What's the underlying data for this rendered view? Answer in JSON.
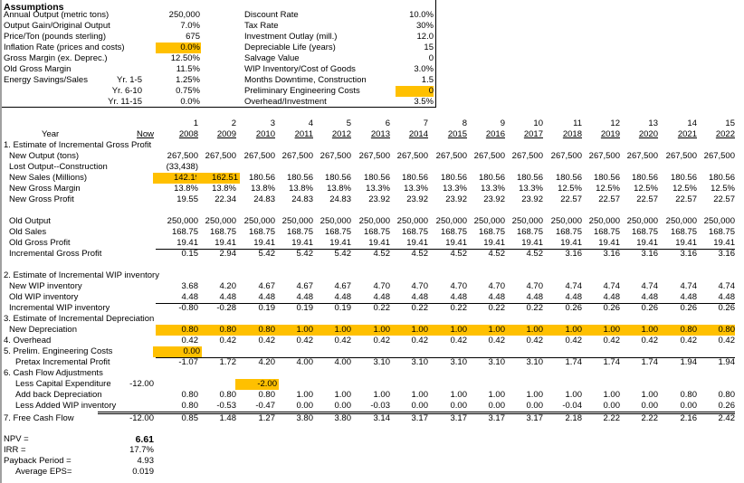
{
  "colors": {
    "highlight": "#FFC000"
  },
  "assumptions": {
    "title": "Assumptions",
    "left": [
      {
        "label": "Annual Output (metric tons)",
        "sub": "",
        "value": "250,000"
      },
      {
        "label": "Output Gain/Original Output",
        "sub": "",
        "value": "7.0%"
      },
      {
        "label": "Price/Ton (pounds sterling)",
        "sub": "",
        "value": "675"
      },
      {
        "label": "Inflation Rate (prices and costs)",
        "sub": "",
        "value": "0.0%",
        "highlight": true
      },
      {
        "label": "Gross Margin (ex. Deprec.)",
        "sub": "",
        "value": "12.50%"
      },
      {
        "label": "Old Gross Margin",
        "sub": "",
        "value": "11.5%"
      },
      {
        "label": "Energy Savings/Sales",
        "sub": "Yr. 1-5",
        "value": "1.25%"
      },
      {
        "label": "",
        "sub": "Yr. 6-10",
        "value": "0.75%"
      },
      {
        "label": "",
        "sub": "Yr. 11-15",
        "value": "0.0%"
      }
    ],
    "right": [
      {
        "label": "Discount Rate",
        "value": "10.0%"
      },
      {
        "label": "Tax Rate",
        "value": "30%"
      },
      {
        "label": "Investment Outlay (mill.)",
        "value": "12.0"
      },
      {
        "label": "Depreciable Life (years)",
        "value": "15"
      },
      {
        "label": "Salvage Value",
        "value": "0"
      },
      {
        "label": "WIP Inventory/Cost of Goods",
        "value": "3.0%"
      },
      {
        "label": "Months Downtime, Construction",
        "value": "1.5"
      },
      {
        "label": "Preliminary Engineering Costs",
        "value": "0",
        "highlight": true
      },
      {
        "label": "Overhead/Investment",
        "value": "3.5%"
      }
    ]
  },
  "table": {
    "year_label": "Year",
    "now_label": "Now",
    "period_numbers": [
      "1",
      "2",
      "3",
      "4",
      "5",
      "6",
      "7",
      "8",
      "9",
      "10",
      "11",
      "12",
      "13",
      "14",
      "15"
    ],
    "years": [
      "2008",
      "2009",
      "2010",
      "2011",
      "2012",
      "2013",
      "2014",
      "2015",
      "2016",
      "2017",
      "2018",
      "2019",
      "2020",
      "2021",
      "2022"
    ],
    "rows": [
      {
        "label": "1. Estimate of Incremental Gross Profit",
        "indent": 0,
        "values": []
      },
      {
        "label": "New Output (tons)",
        "indent": 2,
        "values": [
          "267,500",
          "267,500",
          "267,500",
          "267,500",
          "267,500",
          "267,500",
          "267,500",
          "267,500",
          "267,500",
          "267,500",
          "267,500",
          "267,500",
          "267,500",
          "267,500",
          "267,500"
        ]
      },
      {
        "label": "Lost Output--Construction",
        "indent": 2,
        "values": [
          "(33,438)"
        ]
      },
      {
        "label": "New Sales (Millions)",
        "indent": 2,
        "values": [
          "142.19",
          "162.51",
          "180.56",
          "180.56",
          "180.56",
          "180.56",
          "180.56",
          "180.56",
          "180.56",
          "180.56",
          "180.56",
          "180.56",
          "180.56",
          "180.56",
          "180.56"
        ],
        "highlight_cols": [
          0,
          1
        ]
      },
      {
        "label": "New Gross Margin",
        "indent": 2,
        "values": [
          "13.8%",
          "13.8%",
          "13.8%",
          "13.8%",
          "13.8%",
          "13.3%",
          "13.3%",
          "13.3%",
          "13.3%",
          "13.3%",
          "12.5%",
          "12.5%",
          "12.5%",
          "12.5%",
          "12.5%"
        ]
      },
      {
        "label": "New Gross Profit",
        "indent": 2,
        "values": [
          "19.55",
          "22.34",
          "24.83",
          "24.83",
          "24.83",
          "23.92",
          "23.92",
          "23.92",
          "23.92",
          "23.92",
          "22.57",
          "22.57",
          "22.57",
          "22.57",
          "22.57"
        ]
      },
      {
        "label": "",
        "indent": 0,
        "values": []
      },
      {
        "label": "Old Output",
        "indent": 2,
        "values": [
          "250,000",
          "250,000",
          "250,000",
          "250,000",
          "250,000",
          "250,000",
          "250,000",
          "250,000",
          "250,000",
          "250,000",
          "250,000",
          "250,000",
          "250,000",
          "250,000",
          "250,000"
        ]
      },
      {
        "label": "Old Sales",
        "indent": 2,
        "values": [
          "168.75",
          "168.75",
          "168.75",
          "168.75",
          "168.75",
          "168.75",
          "168.75",
          "168.75",
          "168.75",
          "168.75",
          "168.75",
          "168.75",
          "168.75",
          "168.75",
          "168.75"
        ]
      },
      {
        "label": "Old Gross Profit",
        "indent": 2,
        "values": [
          "19.41",
          "19.41",
          "19.41",
          "19.41",
          "19.41",
          "19.41",
          "19.41",
          "19.41",
          "19.41",
          "19.41",
          "19.41",
          "19.41",
          "19.41",
          "19.41",
          "19.41"
        ]
      },
      {
        "label": "Incremental Gross Profit",
        "indent": 2,
        "values": [
          "0.15",
          "2.94",
          "5.42",
          "5.42",
          "5.42",
          "4.52",
          "4.52",
          "4.52",
          "4.52",
          "4.52",
          "3.16",
          "3.16",
          "3.16",
          "3.16",
          "3.16"
        ]
      },
      {
        "label": "",
        "indent": 0,
        "values": []
      },
      {
        "label": "2. Estimate of Incremental WIP inventory",
        "indent": 0,
        "values": []
      },
      {
        "label": "New WIP inventory",
        "indent": 2,
        "values": [
          "3.68",
          "4.20",
          "4.67",
          "4.67",
          "4.67",
          "4.70",
          "4.70",
          "4.70",
          "4.70",
          "4.70",
          "4.74",
          "4.74",
          "4.74",
          "4.74",
          "4.74"
        ]
      },
      {
        "label": "Old WIP inventory",
        "indent": 2,
        "values": [
          "4.48",
          "4.48",
          "4.48",
          "4.48",
          "4.48",
          "4.48",
          "4.48",
          "4.48",
          "4.48",
          "4.48",
          "4.48",
          "4.48",
          "4.48",
          "4.48",
          "4.48"
        ]
      },
      {
        "label": "Incremental WIP inventory",
        "indent": 2,
        "values": [
          "-0.80",
          "-0.28",
          "0.19",
          "0.19",
          "0.19",
          "0.22",
          "0.22",
          "0.22",
          "0.22",
          "0.22",
          "0.26",
          "0.26",
          "0.26",
          "0.26",
          "0.26"
        ]
      },
      {
        "label": "3. Estimate of Incremental Depreciation",
        "indent": 0,
        "values": []
      },
      {
        "label": "New Depreciation",
        "indent": 2,
        "values": [
          "0.80",
          "0.80",
          "0.80",
          "1.00",
          "1.00",
          "1.00",
          "1.00",
          "1.00",
          "1.00",
          "1.00",
          "1.00",
          "1.00",
          "1.00",
          "0.80",
          "0.80"
        ],
        "highlight_row": true
      },
      {
        "label": "4. Overhead",
        "indent": 0,
        "values": [
          "0.42",
          "0.42",
          "0.42",
          "0.42",
          "0.42",
          "0.42",
          "0.42",
          "0.42",
          "0.42",
          "0.42",
          "0.42",
          "0.42",
          "0.42",
          "0.42",
          "0.42"
        ]
      },
      {
        "label": "5. Prelim. Engineering Costs",
        "indent": 0,
        "values": [
          "0.00"
        ],
        "highlight_cols": [
          0
        ]
      },
      {
        "label": "Pretax Incremental Profit",
        "indent": 1,
        "values": [
          "-1.07",
          "1.72",
          "4.20",
          "4.00",
          "4.00",
          "3.10",
          "3.10",
          "3.10",
          "3.10",
          "3.10",
          "1.74",
          "1.74",
          "1.74",
          "1.94",
          "1.94"
        ]
      },
      {
        "label": "6. Cash Flow Adjustments",
        "indent": 0,
        "values": []
      },
      {
        "label": "Less Capital Expenditure",
        "indent": 1,
        "now": "-12.00",
        "values": [
          "",
          "",
          "-2.00"
        ],
        "highlight_cols": [
          2
        ]
      },
      {
        "label": "Add back Depreciation",
        "indent": 1,
        "values": [
          "0.80",
          "0.80",
          "0.80",
          "1.00",
          "1.00",
          "1.00",
          "1.00",
          "1.00",
          "1.00",
          "1.00",
          "1.00",
          "1.00",
          "1.00",
          "0.80",
          "0.80"
        ]
      },
      {
        "label": "Less Added WIP inventory",
        "indent": 1,
        "values": [
          "0.80",
          "-0.53",
          "-0.47",
          "0.00",
          "0.00",
          "-0.03",
          "0.00",
          "0.00",
          "0.00",
          "0.00",
          "-0.04",
          "0.00",
          "0.00",
          "0.00",
          "0.26"
        ]
      },
      {
        "label": "7. Free Cash Flow",
        "indent": 0,
        "now": "-12.00",
        "values": [
          "0.85",
          "1.48",
          "1.27",
          "3.80",
          "3.80",
          "3.14",
          "3.17",
          "3.17",
          "3.17",
          "3.17",
          "2.18",
          "2.22",
          "2.22",
          "2.16",
          "2.42"
        ]
      }
    ]
  },
  "summary": [
    {
      "label": "NPV =",
      "value": "6.61",
      "bold": true
    },
    {
      "label": "IRR =",
      "value": "17.7%"
    },
    {
      "label": "Payback Period =",
      "value": "4.93"
    },
    {
      "label": "Average EPS=",
      "value": "0.019",
      "indent": true
    }
  ]
}
